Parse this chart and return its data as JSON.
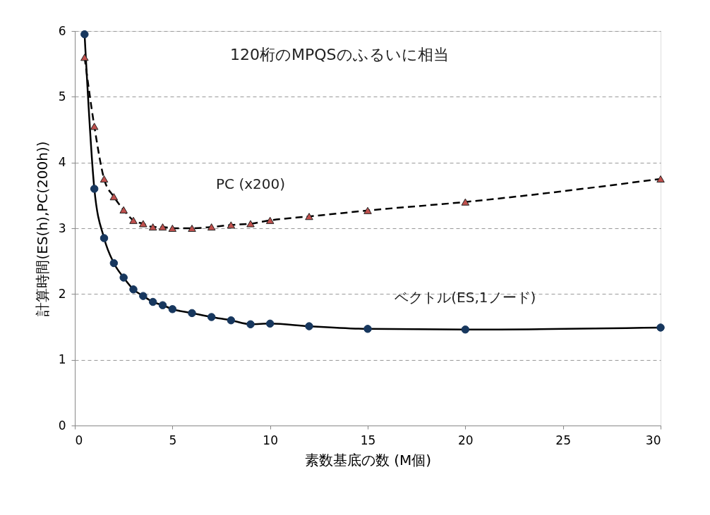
{
  "chart_data": {
    "type": "line",
    "xlabel": "素数基底の数 (M個)",
    "ylabel": "計算時間(ES(h),PC(200h))",
    "annotations": [
      "120桁のMPQSのふるいに相当"
    ],
    "x": [
      0.5,
      1,
      1.5,
      2,
      2.5,
      3,
      3.5,
      4,
      4.5,
      5,
      6,
      7,
      8,
      9,
      10,
      12,
      15,
      20,
      30
    ],
    "series": [
      {
        "name": "ベクトル(ES,1ノード)",
        "color": "#17375e",
        "marker": "circle",
        "line_style": "solid",
        "values": [
          5.95,
          3.6,
          2.85,
          2.47,
          2.25,
          2.07,
          1.97,
          1.88,
          1.83,
          1.77,
          1.71,
          1.65,
          1.6,
          1.54,
          1.55,
          1.51,
          1.47,
          1.46,
          1.49
        ]
      },
      {
        "name": "PC (x200)",
        "color": "#c0504d",
        "marker": "triangle",
        "line_style": "dashed",
        "values": [
          5.6,
          4.55,
          3.75,
          3.48,
          3.28,
          3.12,
          3.07,
          3.02,
          3.02,
          3.0,
          3.0,
          3.02,
          3.05,
          3.07,
          3.12,
          3.18,
          3.27,
          3.4,
          3.75
        ]
      }
    ],
    "xlim": [
      0,
      30
    ],
    "xticks": [
      0,
      5,
      10,
      15,
      20,
      25,
      30
    ],
    "ylim": [
      0,
      6
    ],
    "yticks": [
      0,
      1,
      2,
      3,
      4,
      5,
      6
    ],
    "grid": "y",
    "legend": false
  }
}
